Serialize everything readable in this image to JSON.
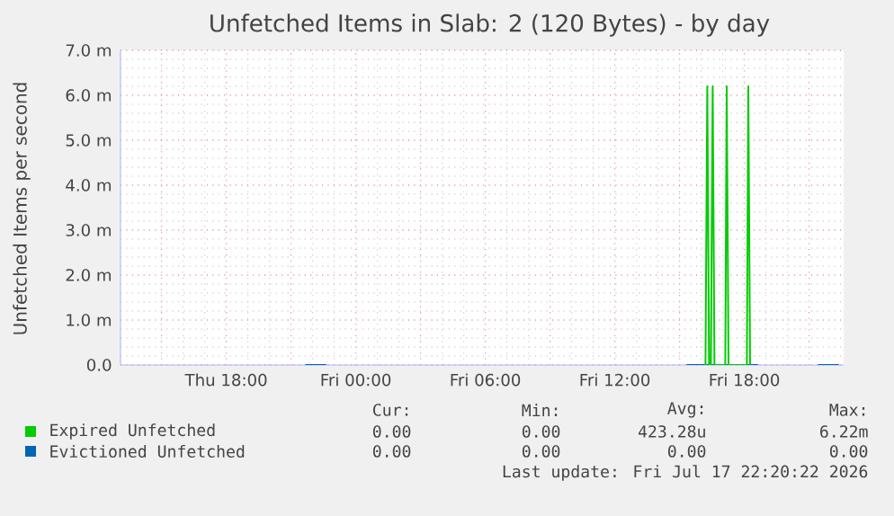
{
  "chart_data": {
    "type": "line",
    "title": "Unfetched Items in Slab: 2 (120 Bytes) - by day",
    "ylabel": "Unfetched Items per second",
    "xlim": [
      "2026-07-16T13:06",
      "2026-07-17T22:36"
    ],
    "ylim": [
      0,
      7
    ],
    "xticks": [
      {
        "value": "2026-07-16T15:00",
        "label": null
      },
      {
        "value": "2026-07-16T18:00",
        "label": "Thu 18:00"
      },
      {
        "value": "2026-07-16T21:00",
        "label": null
      },
      {
        "value": "2026-07-17T00:00",
        "label": "Fri 00:00"
      },
      {
        "value": "2026-07-17T03:00",
        "label": null
      },
      {
        "value": "2026-07-17T06:00",
        "label": "Fri 06:00"
      },
      {
        "value": "2026-07-17T09:00",
        "label": null
      },
      {
        "value": "2026-07-17T12:00",
        "label": "Fri 12:00"
      },
      {
        "value": "2026-07-17T15:00",
        "label": null
      },
      {
        "value": "2026-07-17T18:00",
        "label": "Fri 18:00"
      },
      {
        "value": "2026-07-17T21:00",
        "label": null
      }
    ],
    "yticks": [
      {
        "value": 0,
        "label": "0.0"
      },
      {
        "value": 1,
        "label": "1.0 m"
      },
      {
        "value": 2,
        "label": "2.0 m"
      },
      {
        "value": 3,
        "label": "3.0 m"
      },
      {
        "value": 4,
        "label": "4.0 m"
      },
      {
        "value": 5,
        "label": "5.0 m"
      },
      {
        "value": 6,
        "label": "6.0 m"
      },
      {
        "value": 7,
        "label": "7.0 m"
      }
    ],
    "grid": true,
    "legend": "bottom",
    "series": [
      {
        "name": "Expired Unfetched",
        "color": "#00cc00",
        "x": [
          "2026-07-17T16:12",
          "2026-07-17T16:17",
          "2026-07-17T16:22",
          "2026-07-17T16:27",
          "2026-07-17T16:32",
          "2026-07-17T16:37",
          "2026-07-17T17:07",
          "2026-07-17T17:11",
          "2026-07-17T17:16",
          "2026-07-17T18:07",
          "2026-07-17T18:11",
          "2026-07-17T18:16"
        ],
        "values": [
          0,
          6.2,
          0,
          0,
          6.2,
          0,
          0,
          6.2,
          0,
          0,
          6.2,
          0
        ]
      },
      {
        "name": "Evictioned Unfetched",
        "color": "#0066b3",
        "x": [
          "2026-07-16T21:40",
          "2026-07-16T22:38",
          "2026-07-16T22:42",
          "2026-07-17T15:19",
          "2026-07-17T18:38",
          "2026-07-17T18:42",
          "2026-07-17T21:25",
          "2026-07-17T22:23"
        ],
        "values": [
          0,
          0,
          null,
          0,
          0,
          null,
          0,
          0
        ]
      }
    ],
    "annotations": [
      "Cur:",
      "Min:",
      "Avg:",
      "Max:",
      "0.00",
      "0.00",
      "423.28u",
      "6.22m",
      "0.00",
      "0.00",
      "0.00",
      "0.00",
      "Last update: Fri Jul 17 22:20:22 2026"
    ]
  }
}
